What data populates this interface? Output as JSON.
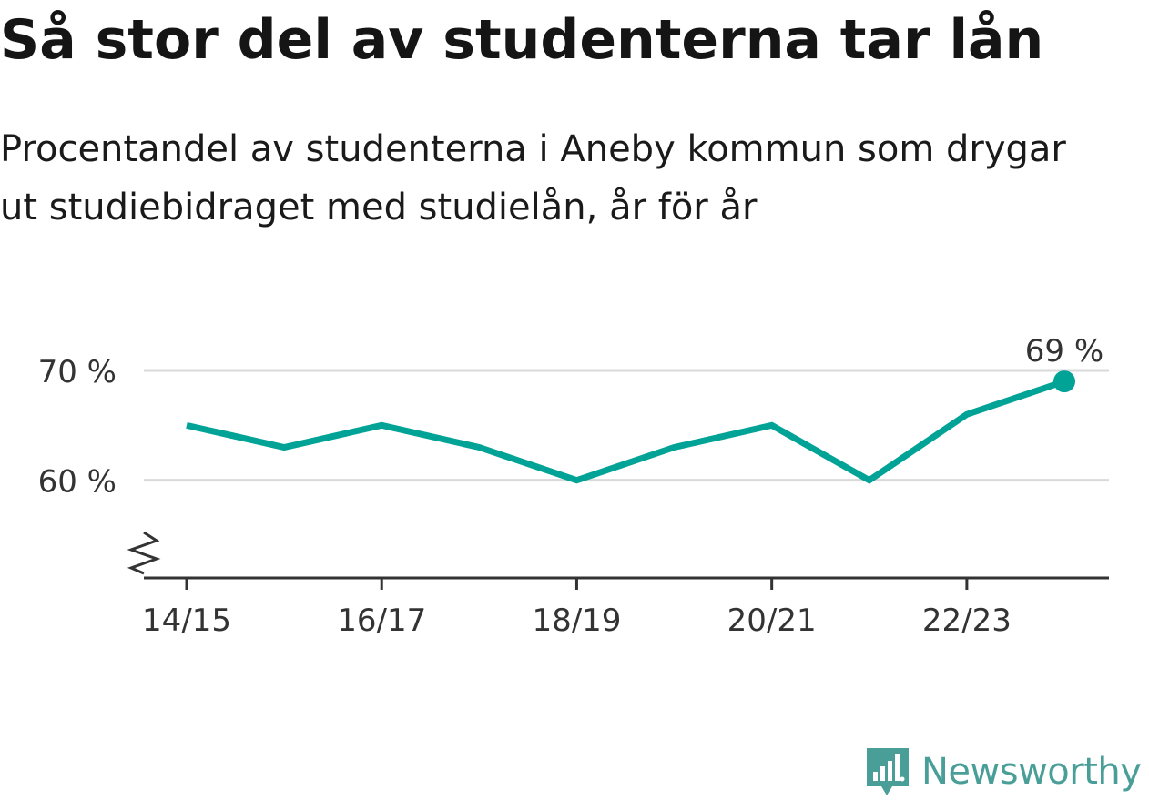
{
  "title": "Så stor del av studenterna tar lån",
  "subtitle": "Procentandel av studenterna i Aneby kommun som drygar ut studiebidraget med studielån, år för år",
  "brand": {
    "name": "Newsworthy",
    "logo_icon": "newsworthy-chart-icon",
    "color": "#4a9e98"
  },
  "chart_data": {
    "type": "line",
    "title": "Så stor del av studenterna tar lån",
    "subtitle": "Procentandel av studenterna i Aneby kommun som drygar ut studiebidraget med studielån, år för år",
    "x": [
      "14/15",
      "15/16",
      "16/17",
      "17/18",
      "18/19",
      "19/20",
      "20/21",
      "21/22",
      "22/23",
      "23/24"
    ],
    "x_ticks": [
      "14/15",
      "16/17",
      "18/19",
      "20/21",
      "22/23"
    ],
    "series": [
      {
        "values": [
          65,
          63,
          65,
          63,
          60,
          63,
          65,
          60,
          66,
          69
        ],
        "color": "#00a396"
      }
    ],
    "y_ticks": [
      60,
      70
    ],
    "y_tick_labels": [
      "60 %",
      "70 %"
    ],
    "ylim": [
      51.1,
      71
    ],
    "y_axis_break": true,
    "grid": true,
    "end_label": "69 %",
    "xlabel": "",
    "ylabel": ""
  }
}
